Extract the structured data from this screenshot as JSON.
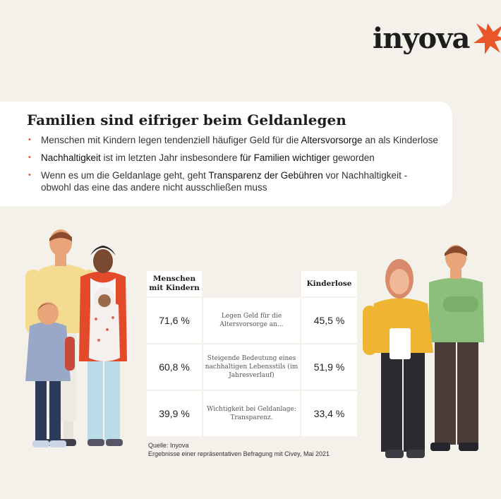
{
  "logo": {
    "text": "inyova",
    "accent_color": "#e8562a"
  },
  "card": {
    "title": "Familien sind eifriger beim Geldanlegen",
    "bullets": [
      {
        "pre": "Menschen mit Kindern legen tendenziell häufiger Geld für die ",
        "hl": "Altersvorsorge",
        "post": " an als Kinderlose"
      },
      {
        "hl": "Nachhaltigkeit",
        "mid": " ist im letzten Jahr insbesondere ",
        "hl2": "für Familien wichtiger",
        "post": " geworden"
      },
      {
        "pre": "Wenn es um die Geldanlage geht, geht ",
        "hl": "Transparenz der Gebühren",
        "post": " vor Nachhaltigkeit -",
        "line2": "obwohl das eine das andere nicht ausschließen muss"
      }
    ]
  },
  "table": {
    "header_left": "Menschen mit Kindern",
    "header_right": "Kinderlose",
    "rows": [
      {
        "with_kids": "71,6 %",
        "label": "Legen Geld für die Altersvorsorge an...",
        "childless": "45,5 %"
      },
      {
        "with_kids": "60,8 %",
        "label": "Steigende Bedeutung eines nachhaltigen Lebensstils (im Jahresverlauf)",
        "childless": "51,9 %"
      },
      {
        "with_kids": "39,9 %",
        "label": "Wichtigkeit bei Geldanlage: Transparenz.",
        "childless": "33,4 %"
      }
    ]
  },
  "source": {
    "line1": "Quelle: Inyova",
    "line2": "Ergebnisse einer repräsentativen Befragung mit Civey, Mai 2021"
  }
}
